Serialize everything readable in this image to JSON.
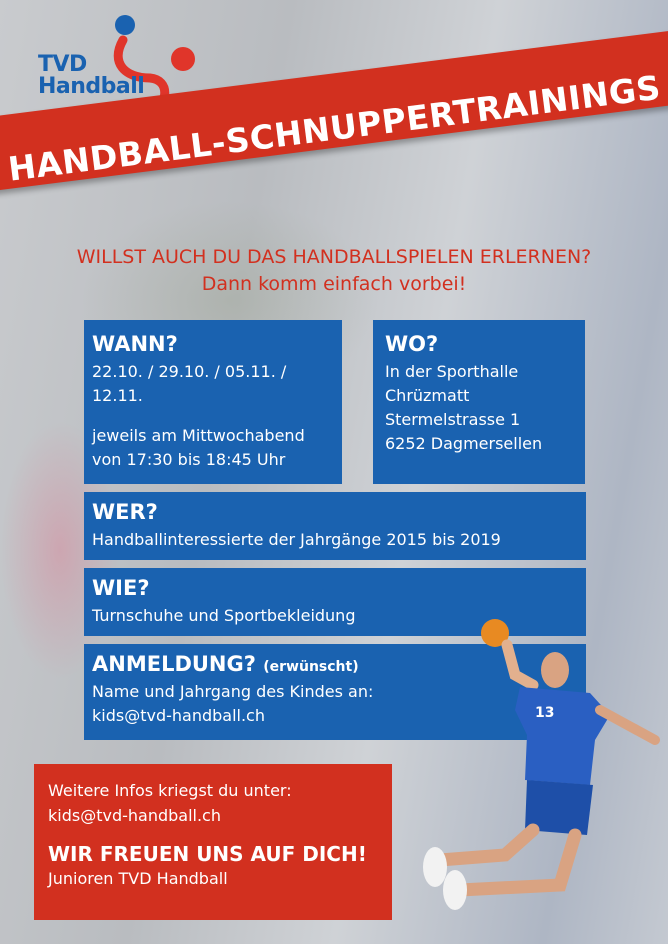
{
  "logo": {
    "line1": "TVD",
    "line2": "Handball"
  },
  "banner": {
    "title": "HANDBALL-SCHNUPPERTRAININGS"
  },
  "headline": {
    "line1": "WILLST AUCH DU DAS HANDBALLSPIELEN ERLERNEN?",
    "line2": "Dann komm einfach vorbei!"
  },
  "wann": {
    "title": "WANN?",
    "dates": "22.10. / 29.10. / 05.11. / 12.11.",
    "line1": "jeweils am Mittwochabend",
    "line2": "von 17:30 bis 18:45 Uhr"
  },
  "wo": {
    "title": "WO?",
    "lines": [
      "In der Sporthalle",
      "Chrüzmatt",
      "Stermelstrasse 1",
      "6252 Dagmersellen"
    ]
  },
  "wer": {
    "title": "WER?",
    "text": "Handballinteressierte der Jahrgänge 2015 bis 2019"
  },
  "wie": {
    "title": "WIE?",
    "text": "Turnschuhe und Sportbekleidung"
  },
  "anmeldung": {
    "title": "ANMELDUNG?",
    "note": "(erwünscht)",
    "line1": "Name und Jahrgang des Kindes an:",
    "line2": "kids@tvd-handball.ch"
  },
  "footer": {
    "line1": "Weitere Infos kriegst du unter:",
    "email": "kids@tvd-handball.ch",
    "slogan": "WIR FREUEN UNS AUF DICH!",
    "sign": "Junioren TVD Handball"
  },
  "colors": {
    "blue": "#1a62b0",
    "red": "#d2301f"
  },
  "player": {
    "jersey_number": "13"
  }
}
